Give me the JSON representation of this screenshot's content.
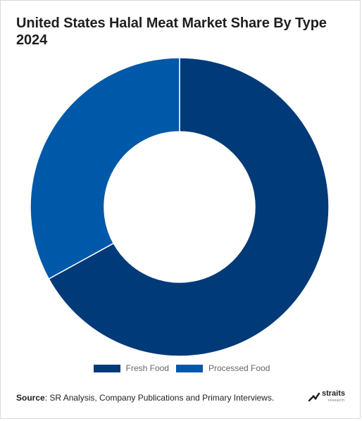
{
  "page": {
    "title": "United States Halal Meat Market Share By Type 2024",
    "source_label": "Source",
    "source_text": ": SR Analysis, Company Publications and Primary Interviews.",
    "logo_text": "straits",
    "logo_subtext": "research"
  },
  "chart_data": {
    "type": "pie",
    "title": "United States Halal Meat Market Share By Type 2024",
    "donut": true,
    "categories": [
      "Fresh Food",
      "Processed Food"
    ],
    "values": [
      67,
      33
    ],
    "colors": [
      "#003a78",
      "#0058a8"
    ],
    "legend_position": "bottom",
    "start_angle_deg": 0,
    "direction": "clockwise"
  }
}
